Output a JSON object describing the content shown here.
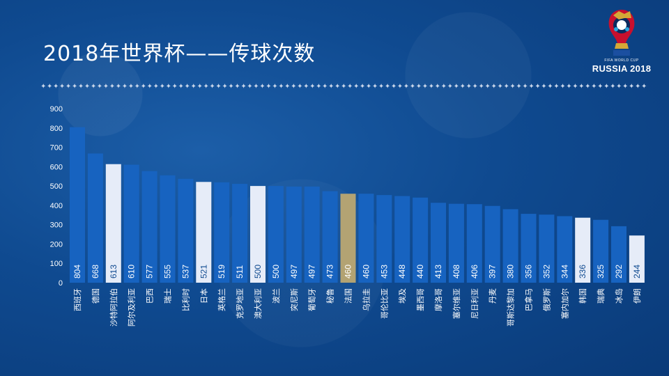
{
  "header": {
    "title": "2018年世界杯——传球次数"
  },
  "logo": {
    "small_text": "FIFA WORLD CUP",
    "big_text": "RUSSIA 2018"
  },
  "colors": {
    "bar_default": "#1763c0",
    "bar_highlight_light": "#e6ecf8",
    "bar_highlight_gold": "#b3a373"
  },
  "chart_data": {
    "type": "bar",
    "title": "2018年世界杯——传球次数",
    "xlabel": "",
    "ylabel": "",
    "ylim": [
      0,
      900
    ],
    "yticks": [
      0,
      100,
      200,
      300,
      400,
      500,
      600,
      700,
      800,
      900
    ],
    "grid": false,
    "categories": [
      "西班牙",
      "德国",
      "沙特阿拉伯",
      "阿尔及利亚",
      "巴西",
      "瑞士",
      "比利时",
      "日本",
      "英格兰",
      "克罗地亚",
      "澳大利亚",
      "波兰",
      "突尼斯",
      "葡萄牙",
      "秘鲁",
      "法国",
      "乌拉圭",
      "哥伦比亚",
      "埃及",
      "墨西哥",
      "摩洛哥",
      "塞尔维亚",
      "尼日利亚",
      "丹麦",
      "哥斯达黎加",
      "巴拿马",
      "俄罗斯",
      "塞内加尔",
      "韩国",
      "瑞典",
      "冰岛",
      "伊朗"
    ],
    "values": [
      804,
      668,
      613,
      610,
      577,
      555,
      537,
      521,
      519,
      511,
      500,
      500,
      497,
      497,
      473,
      460,
      460,
      453,
      448,
      440,
      413,
      408,
      406,
      397,
      380,
      356,
      352,
      344,
      336,
      325,
      292,
      244
    ],
    "highlights": [
      "default",
      "default",
      "light",
      "default",
      "default",
      "default",
      "default",
      "light",
      "default",
      "default",
      "light",
      "default",
      "default",
      "default",
      "default",
      "gold",
      "default",
      "default",
      "default",
      "default",
      "default",
      "default",
      "default",
      "default",
      "default",
      "default",
      "default",
      "default",
      "light",
      "default",
      "default",
      "light"
    ]
  }
}
